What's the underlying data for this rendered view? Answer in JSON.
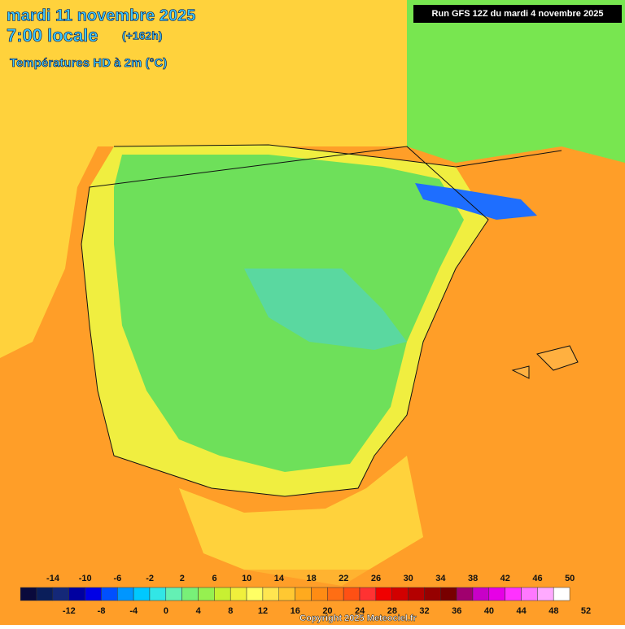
{
  "header": {
    "date": "mardi 11 novembre 2025",
    "time": "7:00 locale",
    "offset": "(+162h)",
    "field": "Températures HD à 2m (°C)",
    "run": "Run GFS 12Z du mardi 4 novembre 2025"
  },
  "colorbar": {
    "labels": [
      -14,
      -12,
      -10,
      -8,
      -6,
      -4,
      -2,
      0,
      2,
      4,
      6,
      8,
      10,
      12,
      14,
      16,
      18,
      20,
      22,
      24,
      26,
      28,
      30,
      32,
      34,
      36,
      38,
      40,
      42,
      44,
      46,
      48,
      50,
      52
    ],
    "colors": [
      "#0a0a3c",
      "#0a1e5a",
      "#142878",
      "#0000a0",
      "#0000e6",
      "#0050ff",
      "#0096ff",
      "#00c8ff",
      "#32e6e6",
      "#64f0b4",
      "#78f078",
      "#96f050",
      "#c8f032",
      "#f0f03c",
      "#ffff64",
      "#ffe650",
      "#ffc832",
      "#ffaa1e",
      "#ff8c14",
      "#ff6e14",
      "#ff5014",
      "#ff3232",
      "#f00000",
      "#d20000",
      "#b40000",
      "#960000",
      "#780000",
      "#a0006e",
      "#c800c8",
      "#e600e6",
      "#ff32ff",
      "#ff78ff",
      "#ffaaff",
      "#ffffff"
    ]
  },
  "footer": {
    "copyright": "Copyright 2025 Meteociel.fr"
  }
}
